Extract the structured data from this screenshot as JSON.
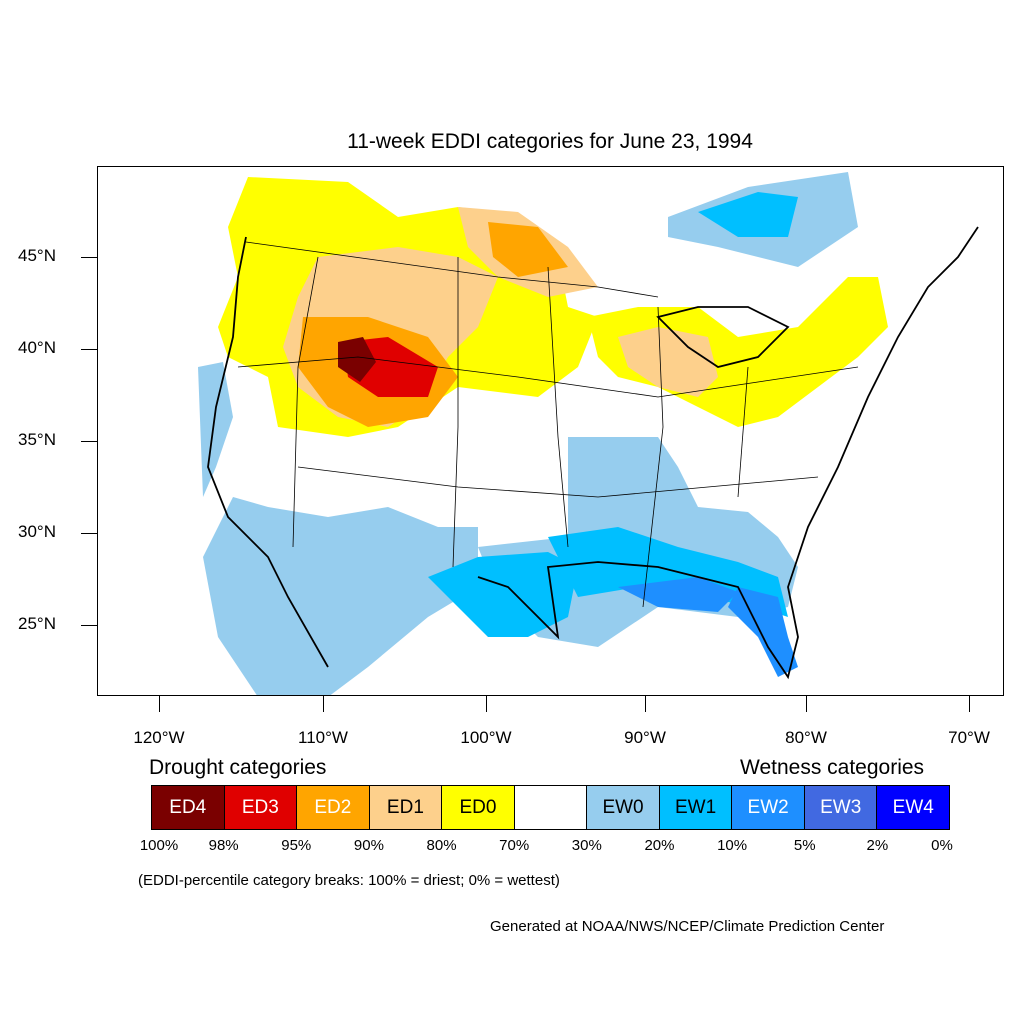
{
  "title": "11-week EDDI categories for June 23, 1994",
  "map": {
    "lat_labels": [
      "45°N",
      "40°N",
      "35°N",
      "30°N",
      "25°N"
    ],
    "lon_labels": [
      "120°W",
      "110°W",
      "100°W",
      "90°W",
      "80°W",
      "70°W"
    ],
    "colors": {
      "ED4": "#7a0000",
      "ED3": "#e00000",
      "ED2": "#ffa500",
      "ED1": "#fdd08c",
      "ED0": "#ffff00",
      "NONE": "#ffffff",
      "EW0": "#96cdee",
      "EW1": "#00bfff",
      "EW2": "#1e8fff",
      "EW3": "#4169e1",
      "EW4": "#0000ff"
    }
  },
  "legend": {
    "drought_heading": "Drought categories",
    "wetness_heading": "Wetness categories",
    "categories": [
      {
        "label": "ED4",
        "color": "#7a0000",
        "text_color": "#ffffff"
      },
      {
        "label": "ED3",
        "color": "#e00000",
        "text_color": "#ffffff"
      },
      {
        "label": "ED2",
        "color": "#ffa500",
        "text_color": "#ffffff"
      },
      {
        "label": "ED1",
        "color": "#fdd08c",
        "text_color": "#000000"
      },
      {
        "label": "ED0",
        "color": "#ffff00",
        "text_color": "#000000"
      },
      {
        "label": "",
        "color": "#ffffff",
        "text_color": "#000000"
      },
      {
        "label": "EW0",
        "color": "#96cdee",
        "text_color": "#000000"
      },
      {
        "label": "EW1",
        "color": "#00bfff",
        "text_color": "#000000"
      },
      {
        "label": "EW2",
        "color": "#1e8fff",
        "text_color": "#ffffff"
      },
      {
        "label": "EW3",
        "color": "#4169e1",
        "text_color": "#ffffff"
      },
      {
        "label": "EW4",
        "color": "#0000ff",
        "text_color": "#ffffff"
      }
    ],
    "percentiles": [
      "100%",
      "98%",
      "95%",
      "90%",
      "80%",
      "70%",
      "30%",
      "20%",
      "10%",
      "5%",
      "2%",
      "0%"
    ]
  },
  "note": "(EDDI-percentile category breaks: 100% = driest; 0% = wettest)",
  "credit": "Generated at NOAA/NWS/NCEP/Climate Prediction Center"
}
